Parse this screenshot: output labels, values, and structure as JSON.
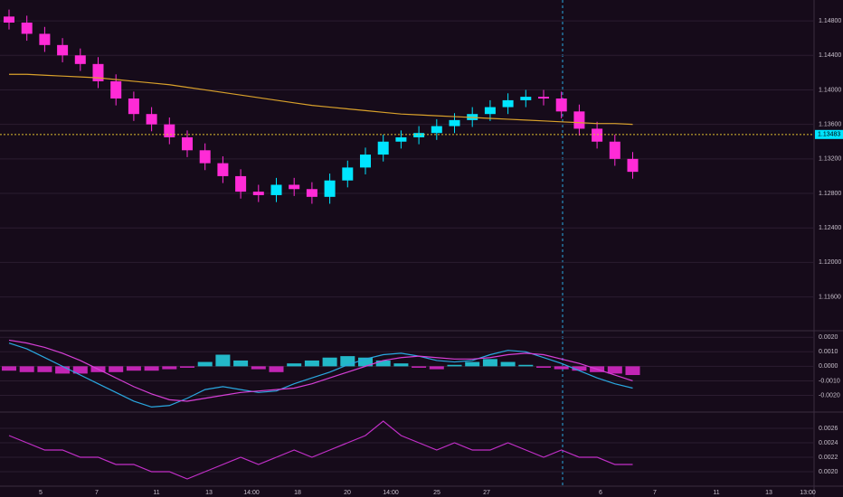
{
  "chart_data": [
    {
      "type": "candlestick",
      "open": [
        1.1485,
        1.1478,
        1.1465,
        1.1452,
        1.144,
        1.143,
        1.141,
        1.139,
        1.1372,
        1.136,
        1.1345,
        1.133,
        1.1315,
        1.13,
        1.1282,
        1.1278,
        1.129,
        1.1285,
        1.1276,
        1.1295,
        1.131,
        1.1325,
        1.134,
        1.1345,
        1.135,
        1.1358,
        1.1365,
        1.1372,
        1.138,
        1.1388,
        1.1392,
        1.139,
        1.1375,
        1.1355,
        1.134,
        1.132
      ],
      "high": [
        1.1493,
        1.1486,
        1.1473,
        1.146,
        1.1448,
        1.1438,
        1.1418,
        1.1398,
        1.138,
        1.1368,
        1.1353,
        1.1338,
        1.1323,
        1.1308,
        1.129,
        1.1298,
        1.1298,
        1.1293,
        1.1303,
        1.1318,
        1.1333,
        1.1348,
        1.1353,
        1.1358,
        1.1366,
        1.1373,
        1.138,
        1.1388,
        1.1396,
        1.14,
        1.14,
        1.1398,
        1.1383,
        1.1363,
        1.1348,
        1.1328
      ],
      "low": [
        1.147,
        1.1457,
        1.1444,
        1.1432,
        1.1422,
        1.1402,
        1.1382,
        1.1364,
        1.1352,
        1.1337,
        1.1322,
        1.1307,
        1.1292,
        1.1274,
        1.127,
        1.127,
        1.1277,
        1.1268,
        1.1268,
        1.1287,
        1.1302,
        1.1317,
        1.1332,
        1.1337,
        1.1342,
        1.135,
        1.1357,
        1.1364,
        1.1372,
        1.138,
        1.1382,
        1.1367,
        1.1347,
        1.1332,
        1.1312,
        1.1297
      ],
      "close": [
        1.1478,
        1.1465,
        1.1452,
        1.144,
        1.143,
        1.141,
        1.139,
        1.1372,
        1.136,
        1.1345,
        1.133,
        1.1315,
        1.13,
        1.1282,
        1.1278,
        1.129,
        1.1285,
        1.1276,
        1.1295,
        1.131,
        1.1325,
        1.134,
        1.1345,
        1.135,
        1.1358,
        1.1365,
        1.1372,
        1.138,
        1.1388,
        1.1392,
        1.139,
        1.1375,
        1.1355,
        1.134,
        1.132,
        1.1305
      ],
      "up_color": "#00e5ff",
      "down_color": "#ff2bd6",
      "overlay": {
        "color": "#d9a12b",
        "values": [
          1.1418,
          1.1418,
          1.1417,
          1.1416,
          1.1415,
          1.1414,
          1.1412,
          1.141,
          1.1408,
          1.1406,
          1.1403,
          1.14,
          1.1397,
          1.1394,
          1.1391,
          1.1388,
          1.1385,
          1.1382,
          1.138,
          1.1378,
          1.1376,
          1.1374,
          1.1372,
          1.1371,
          1.137,
          1.1369,
          1.1368,
          1.1367,
          1.1366,
          1.1365,
          1.1364,
          1.1363,
          1.1362,
          1.1361,
          1.1361,
          1.136
        ]
      },
      "ylim": [
        1.1125,
        1.15
      ],
      "yticks": [
        {
          "value": 1.116,
          "label": "1.11600"
        },
        {
          "value": 1.12,
          "label": "1.12000"
        },
        {
          "value": 1.124,
          "label": "1.12400"
        },
        {
          "value": 1.128,
          "label": "1.12800"
        },
        {
          "value": 1.132,
          "label": "1.13200"
        },
        {
          "value": 1.136,
          "label": "1.13600"
        },
        {
          "value": 1.14,
          "label": "1.14000"
        },
        {
          "value": 1.144,
          "label": "1.14400"
        },
        {
          "value": 1.148,
          "label": "1.14800"
        }
      ],
      "current_price": {
        "value": 1.13483,
        "label": "1.13483"
      },
      "time_labels": [
        "5",
        "7",
        "11",
        "13",
        "14:00",
        "18",
        "20",
        "14:00",
        "25",
        "27",
        "6",
        "7",
        "11",
        "13",
        "13:00"
      ],
      "grid": true
    },
    {
      "type": "bar",
      "values": [
        -0.0003,
        -0.0004,
        -0.0004,
        -0.0005,
        -0.0005,
        -0.0004,
        -0.0004,
        -0.0003,
        -0.0003,
        -0.0002,
        -0.0001,
        0.0003,
        0.0008,
        0.0004,
        -0.0002,
        -0.0004,
        0.0002,
        0.0004,
        0.0006,
        0.0007,
        0.0006,
        0.0004,
        0.0002,
        -0.0001,
        -0.0002,
        0.0001,
        0.0003,
        0.0005,
        0.0003,
        0.0001,
        -0.0001,
        -0.0002,
        -0.0003,
        -0.0004,
        -0.0005,
        -0.0006
      ],
      "up_color": "#26d7e8",
      "down_color": "#e12ad0",
      "series": [
        {
          "color": "#2aa8e0",
          "values": [
            0.0016,
            0.0012,
            0.0006,
            0.0,
            -0.0006,
            -0.0012,
            -0.0018,
            -0.0024,
            -0.0028,
            -0.0027,
            -0.0022,
            -0.0016,
            -0.0014,
            -0.0016,
            -0.0018,
            -0.0017,
            -0.0012,
            -0.0008,
            -0.0004,
            0.0001,
            0.0005,
            0.0008,
            0.0009,
            0.0007,
            0.0004,
            0.0003,
            0.0004,
            0.0008,
            0.0011,
            0.001,
            0.0006,
            0.0002,
            -0.0003,
            -0.0008,
            -0.0012,
            -0.0015
          ]
        },
        {
          "color": "#d63fd6",
          "values": [
            0.0018,
            0.0016,
            0.0013,
            0.0009,
            0.0004,
            -0.0002,
            -0.0008,
            -0.0014,
            -0.0019,
            -0.0023,
            -0.0024,
            -0.0022,
            -0.002,
            -0.0018,
            -0.0017,
            -0.0016,
            -0.0015,
            -0.0012,
            -0.0008,
            -0.0004,
            0.0,
            0.0004,
            0.0006,
            0.0007,
            0.0006,
            0.0005,
            0.0005,
            0.0006,
            0.0008,
            0.0009,
            0.0008,
            0.0005,
            0.0002,
            -0.0002,
            -0.0006,
            -0.001
          ]
        }
      ],
      "ylim": [
        -0.0029,
        0.0022
      ],
      "yticks": [
        {
          "value": 0.002,
          "label": "0.0020"
        },
        {
          "value": 0.001,
          "label": "0.0010"
        },
        {
          "value": 0,
          "label": "0.0000"
        },
        {
          "value": -0.001,
          "label": "-0.0010"
        },
        {
          "value": -0.002,
          "label": "-0.0020"
        }
      ],
      "grid": true
    },
    {
      "type": "line",
      "color": "#c22fc8",
      "values": [
        0.0025,
        0.0024,
        0.0023,
        0.0023,
        0.0022,
        0.0022,
        0.0021,
        0.0021,
        0.002,
        0.002,
        0.0019,
        0.002,
        0.0021,
        0.0022,
        0.0021,
        0.0022,
        0.0023,
        0.0022,
        0.0023,
        0.0024,
        0.0025,
        0.0027,
        0.0025,
        0.0024,
        0.0023,
        0.0024,
        0.0023,
        0.0023,
        0.0024,
        0.0023,
        0.0022,
        0.0023,
        0.0022,
        0.0022,
        0.0021,
        0.0021
      ],
      "ylim": [
        0.00185,
        0.00275
      ],
      "yticks": [
        {
          "value": 0.0026,
          "label": "0.0026"
        },
        {
          "value": 0.0024,
          "label": "0.0024"
        },
        {
          "value": 0.0022,
          "label": "0.0022"
        },
        {
          "value": 0.002,
          "label": "0.0020"
        }
      ],
      "grid": true
    }
  ]
}
